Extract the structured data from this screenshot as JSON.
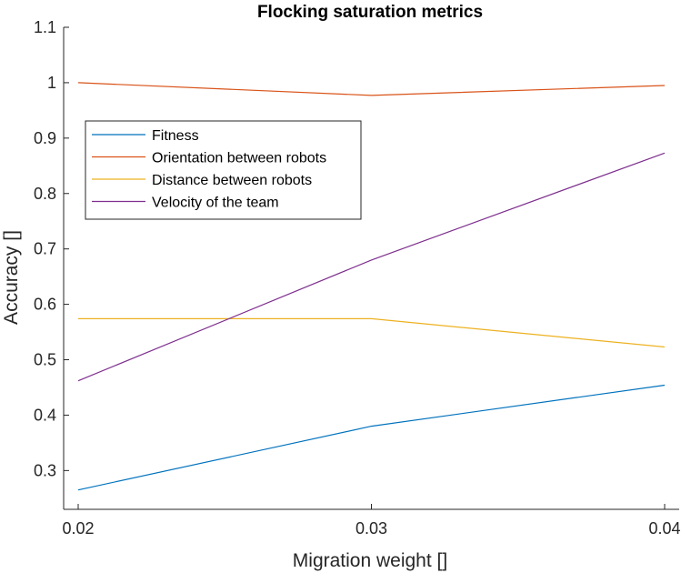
{
  "chart_data": {
    "type": "line",
    "title": "Flocking saturation metrics",
    "xlabel": "Migration weight []",
    "ylabel": "Accuracy []",
    "x": [
      0.02,
      0.03,
      0.04
    ],
    "xticks": [
      "0.02",
      "0.03",
      "0.04"
    ],
    "xlim": [
      0.02,
      0.04
    ],
    "ylim": [
      0.23,
      1.1
    ],
    "yticks": [
      "0.3",
      "0.4",
      "0.5",
      "0.6",
      "0.7",
      "0.8",
      "0.9",
      "1",
      "1.1"
    ],
    "yticks_values": [
      0.3,
      0.4,
      0.5,
      0.6,
      0.7,
      0.8,
      0.9,
      1.0,
      1.1
    ],
    "grid": false,
    "legend_position": "upper-left",
    "series": [
      {
        "name": "Fitness",
        "color": "#0072BD",
        "values": [
          0.265,
          0.38,
          0.454
        ]
      },
      {
        "name": "Orientation between robots",
        "color": "#D95319",
        "values": [
          1.0,
          0.977,
          0.995
        ]
      },
      {
        "name": "Distance between robots",
        "color": "#EDB120",
        "values": [
          0.574,
          0.574,
          0.523
        ]
      },
      {
        "name": "Velocity of the team",
        "color": "#7E2F8E",
        "values": [
          0.462,
          0.68,
          0.873
        ]
      }
    ]
  }
}
